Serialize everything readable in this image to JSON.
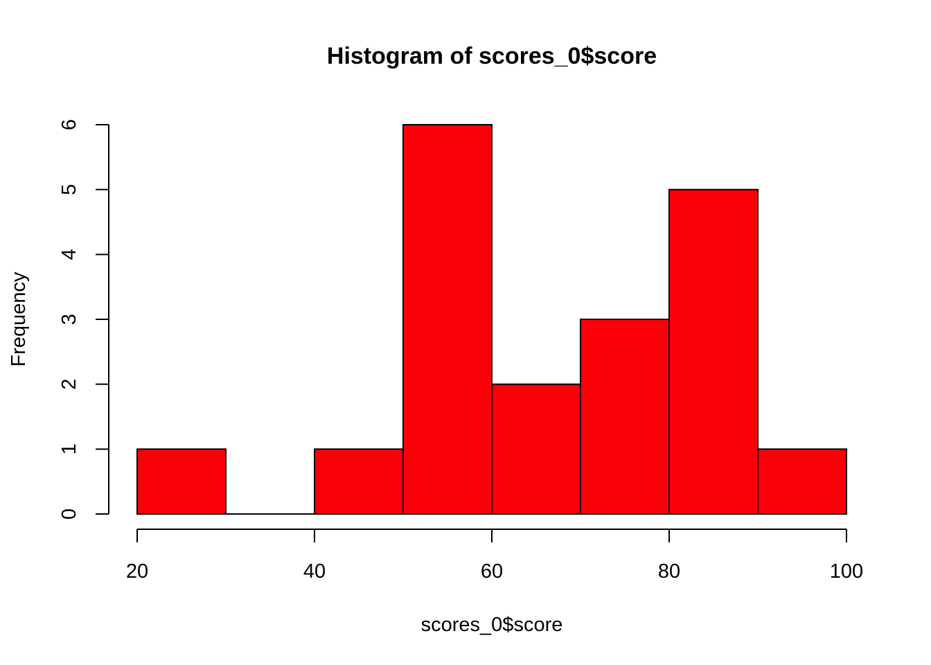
{
  "chart_data": {
    "type": "bar",
    "variant": "histogram",
    "title": "Histogram of scores_0$score",
    "xlabel": "scores_0$score",
    "ylabel": "Frequency",
    "bins": [
      {
        "start": 20,
        "end": 30,
        "count": 1
      },
      {
        "start": 30,
        "end": 40,
        "count": 0
      },
      {
        "start": 40,
        "end": 50,
        "count": 1
      },
      {
        "start": 50,
        "end": 60,
        "count": 6
      },
      {
        "start": 60,
        "end": 70,
        "count": 2
      },
      {
        "start": 70,
        "end": 80,
        "count": 3
      },
      {
        "start": 80,
        "end": 90,
        "count": 5
      },
      {
        "start": 90,
        "end": 100,
        "count": 1
      }
    ],
    "xlim": [
      20,
      100
    ],
    "ylim": [
      0,
      6
    ],
    "x_ticks": [
      "20",
      "40",
      "60",
      "80",
      "100"
    ],
    "y_ticks": [
      "0",
      "1",
      "2",
      "3",
      "4",
      "5",
      "6"
    ],
    "grid": false,
    "legend": "none",
    "bar_color": "#fa0007",
    "edge_color": "#000000"
  }
}
